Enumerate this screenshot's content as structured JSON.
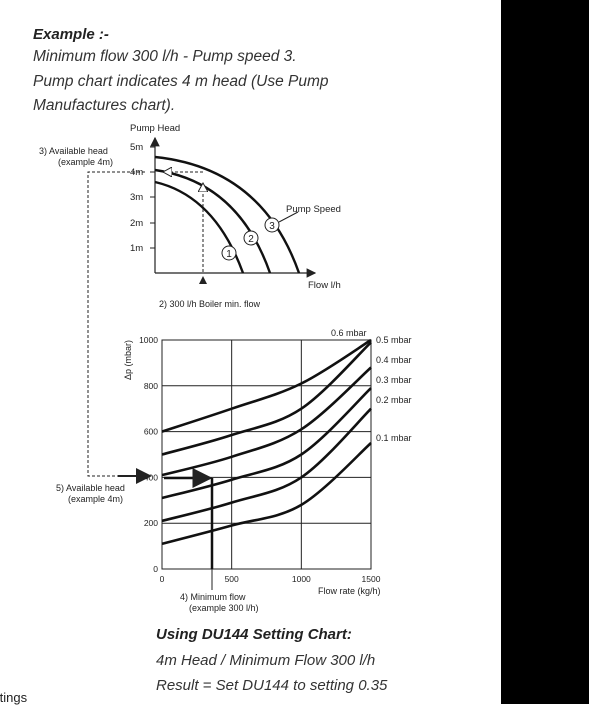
{
  "example": {
    "title": "Example :-",
    "lines": [
      "Minimum flow 300 l/h - Pump speed 3.",
      "Pump chart indicates 4 m head (Use Pump",
      "Manufactures chart)."
    ]
  },
  "pump_chart": {
    "y_title": "Pump Head",
    "x_title": "Flow l/h",
    "y_ticks": [
      "1m",
      "2m",
      "3m",
      "4m",
      "5m"
    ],
    "speed_label": "Pump Speed",
    "speeds": [
      "1",
      "2",
      "3"
    ],
    "annotation_head": [
      "3) Available head",
      "(example 4m)"
    ],
    "annotation_flow": "2) 300 l/h Boiler min. flow"
  },
  "setting_chart": {
    "y_label": "Δp (mbar)",
    "x_label": "Flow rate (kg/h)",
    "y_ticks": [
      "0",
      "200",
      "400",
      "600",
      "800",
      "1000"
    ],
    "x_ticks": [
      "0",
      "500",
      "1000",
      "1500"
    ],
    "curve_labels": [
      "0.6 mbar",
      "0.5 mbar",
      "0.4 mbar",
      "0.3 mbar",
      "0.2 mbar",
      "0.1 mbar"
    ],
    "annotation_head": [
      "5) Available head",
      "(example 4m)"
    ],
    "annotation_flow": [
      "4) Minimum flow",
      "(example 300 l/h)"
    ]
  },
  "chart_data": [
    {
      "type": "line",
      "title": "",
      "ylabel": "Pump Head",
      "xlabel": "Flow l/h",
      "y_unit": "m",
      "ylim": [
        0,
        5
      ],
      "series": [
        {
          "name": "1",
          "x": [
            0,
            1,
            2,
            3
          ],
          "values": [
            3.3,
            3.0,
            2.0,
            0
          ]
        },
        {
          "name": "2",
          "x": [
            0,
            1,
            2,
            3,
            4
          ],
          "values": [
            3.9,
            3.6,
            2.8,
            1.6,
            0
          ]
        },
        {
          "name": "3",
          "x": [
            0,
            1,
            2,
            3,
            4,
            5
          ],
          "values": [
            4.5,
            4.2,
            3.6,
            2.6,
            1.3,
            0
          ]
        }
      ],
      "marker": {
        "flow": "300 l/h",
        "head_m": 4,
        "speed": "3"
      }
    },
    {
      "type": "line",
      "title": "",
      "xlabel": "Flow rate (kg/h)",
      "ylabel": "Δp (mbar)",
      "xlim": [
        0,
        1500
      ],
      "ylim": [
        0,
        1000
      ],
      "x": [
        0,
        500,
        1000,
        1500
      ],
      "series": [
        {
          "name": "0.6 mbar",
          "values": [
            600,
            700,
            810,
            1000
          ]
        },
        {
          "name": "0.5 mbar",
          "values": [
            500,
            585,
            700,
            990
          ]
        },
        {
          "name": "0.4 mbar",
          "values": [
            410,
            490,
            610,
            880
          ]
        },
        {
          "name": "0.3 mbar",
          "values": [
            310,
            390,
            500,
            790
          ]
        },
        {
          "name": "0.2 mbar",
          "values": [
            210,
            290,
            400,
            700
          ]
        },
        {
          "name": "0.1 mbar",
          "values": [
            110,
            190,
            280,
            550
          ]
        }
      ],
      "marker": {
        "flow_kg_h": 300,
        "dp_mbar": 400,
        "result": "0.35"
      }
    }
  ],
  "result": {
    "title": "Using DU144 Setting Chart:",
    "lines": [
      "4m Head / Minimum Flow 300 l/h",
      "Result = Set DU144 to setting 0.35"
    ]
  },
  "side_text": "ttings"
}
